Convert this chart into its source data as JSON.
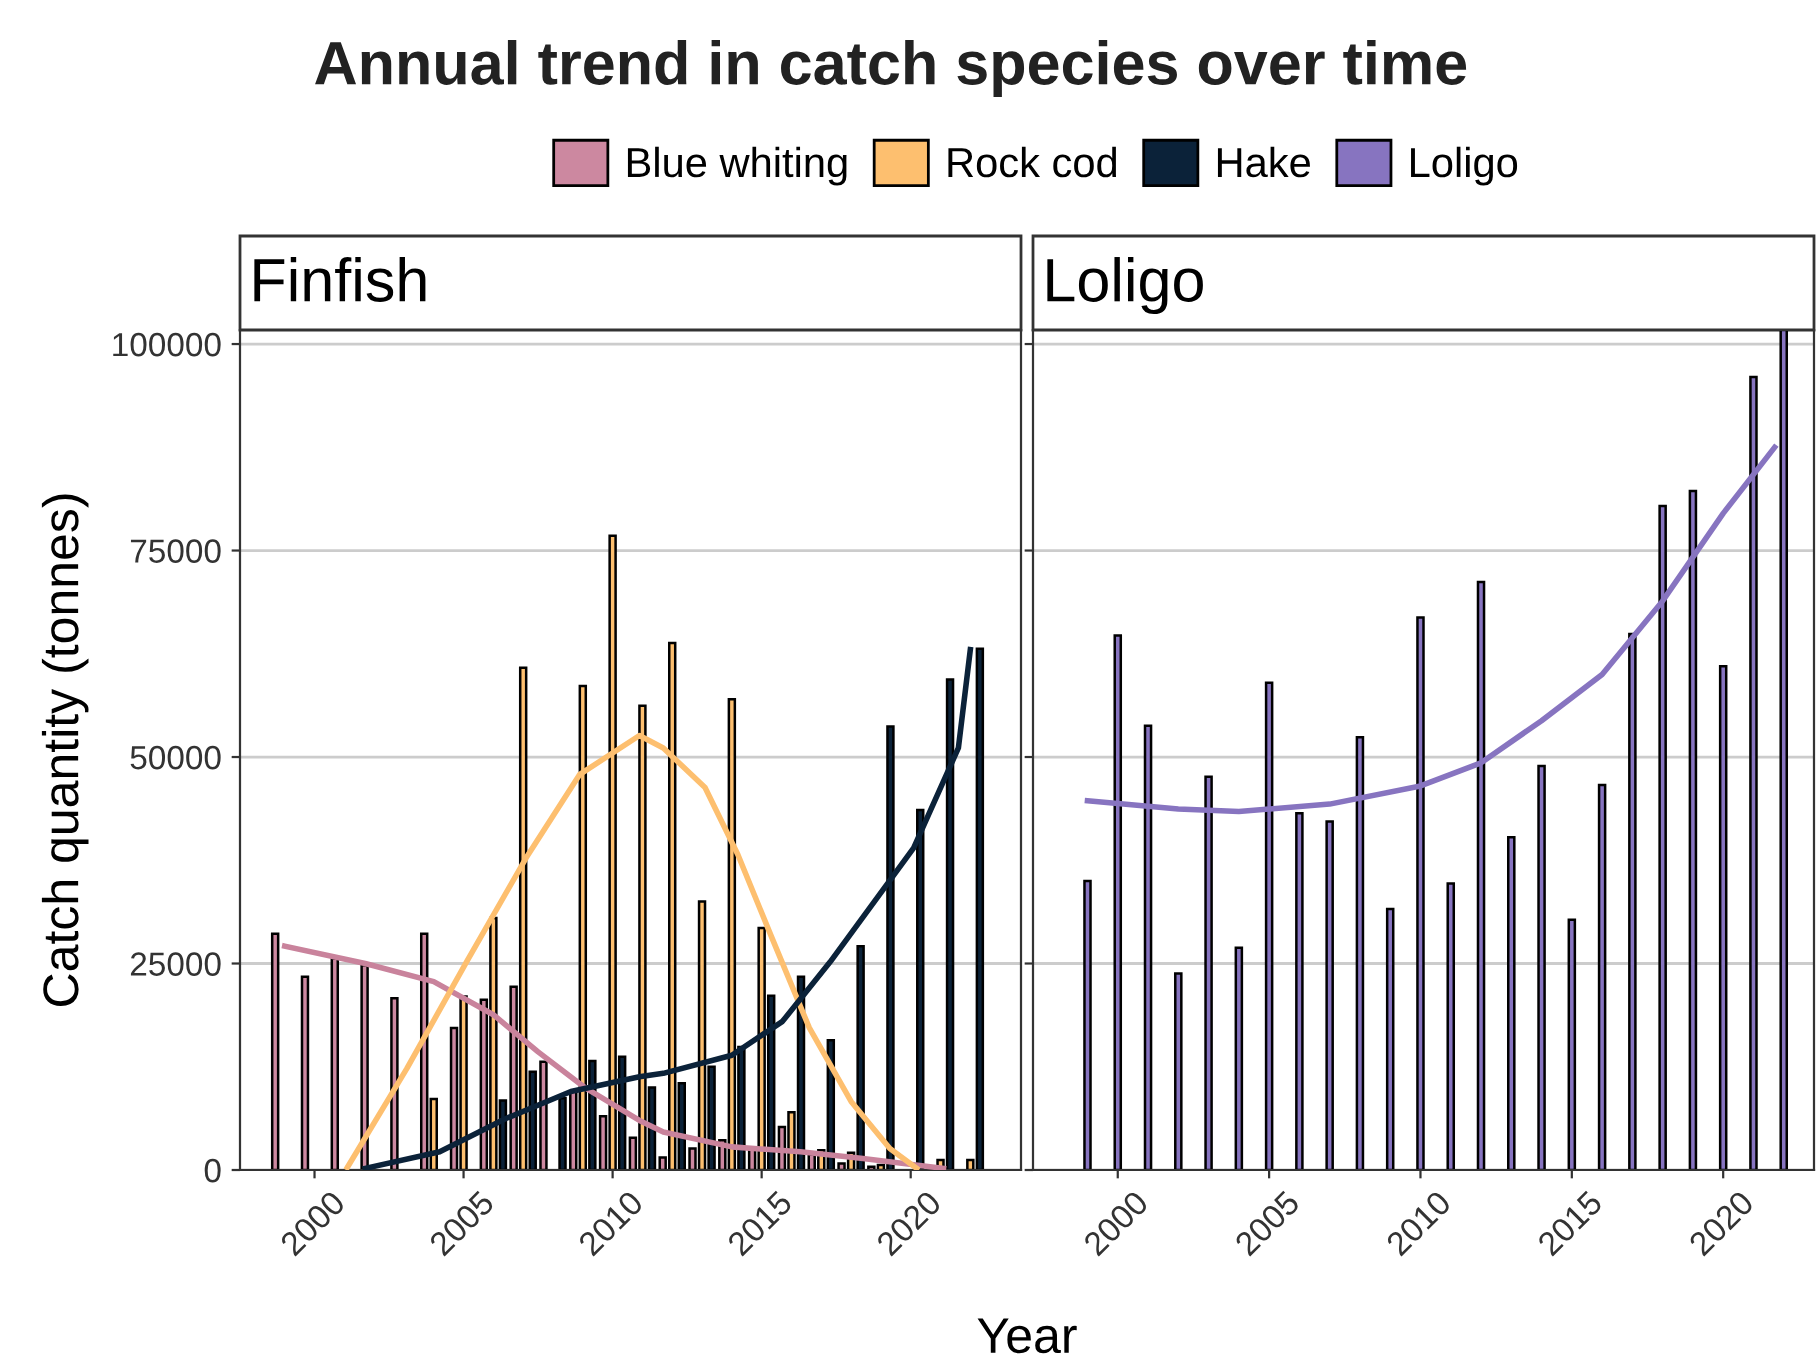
{
  "chart_data": [
    {
      "type": "bar",
      "title": "Annual trend in catch species over time",
      "subtitle": "Finfish",
      "xlabel": "Year",
      "ylabel": "Catch quantity (tonnes)",
      "legend": "top",
      "grid": "y",
      "x": [
        1999,
        2000,
        2001,
        2002,
        2003,
        2004,
        2005,
        2006,
        2007,
        2008,
        2009,
        2010,
        2011,
        2012,
        2013,
        2014,
        2015,
        2016,
        2017,
        2018,
        2019,
        2020,
        2021,
        2022
      ],
      "xlim": [
        1997.5,
        2023.7
      ],
      "xticks": [
        2000,
        2005,
        2010,
        2015,
        2020
      ],
      "ylim": [
        0,
        101700
      ],
      "yticks": [
        0,
        25000,
        50000,
        75000,
        100000
      ],
      "series": [
        {
          "name": "Blue whiting",
          "color": "#cc88a0",
          "values": [
            28600,
            23400,
            25600,
            24800,
            20800,
            28600,
            17200,
            20600,
            22200,
            13100,
            9500,
            6500,
            3900,
            1500,
            2600,
            3600,
            2600,
            5200,
            1900,
            800,
            400,
            null,
            null,
            null
          ]
        },
        {
          "name": "Rock cod",
          "color": "#fdbf6f",
          "values": [
            null,
            null,
            null,
            null,
            null,
            8600,
            21000,
            30500,
            60800,
            null,
            58600,
            76800,
            56200,
            63800,
            32500,
            57000,
            29300,
            7000,
            2400,
            2100,
            600,
            null,
            1200,
            1200
          ]
        },
        {
          "name": "Hake",
          "color": "#0b2239",
          "values": [
            null,
            null,
            null,
            null,
            null,
            null,
            null,
            8400,
            11900,
            8700,
            13200,
            13700,
            10000,
            10500,
            12500,
            14900,
            21100,
            23400,
            15700,
            27100,
            53700,
            43600,
            59400,
            63100
          ]
        },
        {
          "type": "line",
          "color": "#c9839c",
          "x": [
            1999.0,
            2001.7,
            2004.0,
            2006.0,
            2007.5,
            2009.1,
            2010.9,
            2011.7,
            2014.0,
            2016.3,
            2018.4,
            2021.1
          ],
          "values": [
            27100,
            25000,
            22800,
            18800,
            14300,
            9900,
            6000,
            4600,
            2800,
            2200,
            1400,
            200
          ]
        },
        {
          "type": "line",
          "color": "#fdbf6f",
          "x": [
            2001.1,
            2003.1,
            2005.1,
            2007.1,
            2008.9,
            2010.9,
            2011.7,
            2013.1,
            2014.2,
            2015.3,
            2016.6,
            2018.0,
            2019.3,
            2020.2
          ],
          "values": [
            300,
            12300,
            25200,
            37800,
            47900,
            52600,
            51100,
            46300,
            38200,
            28500,
            17200,
            8300,
            2600,
            200
          ]
        },
        {
          "type": "line",
          "color": "#0b2239",
          "x": [
            2001.7,
            2004.2,
            2006.4,
            2008.6,
            2010.9,
            2011.7,
            2014.0,
            2015.7,
            2017.3,
            2020.1,
            2021.6,
            2022.0
          ],
          "values": [
            200,
            2200,
            6200,
            9500,
            11300,
            11700,
            13900,
            18000,
            25200,
            39000,
            51100,
            63000
          ]
        }
      ]
    },
    {
      "type": "bar",
      "subtitle": "Loligo",
      "legend": "top",
      "grid": "y",
      "tick_labels": "x",
      "x": [
        1999,
        2000,
        2001,
        2002,
        2003,
        2004,
        2005,
        2006,
        2007,
        2008,
        2009,
        2010,
        2011,
        2012,
        2013,
        2014,
        2015,
        2016,
        2017,
        2018,
        2019,
        2020,
        2021,
        2022
      ],
      "xlim": [
        1997.2,
        2023.0
      ],
      "xticks": [
        2000,
        2005,
        2010,
        2015,
        2020
      ],
      "ylim": [
        0,
        101700
      ],
      "yticks": [
        0,
        25000,
        50000,
        75000,
        100000
      ],
      "series": [
        {
          "name": "Loligo",
          "color": "#8774c0",
          "values": [
            35000,
            64700,
            53800,
            23800,
            47600,
            26900,
            59000,
            43200,
            42200,
            52400,
            31600,
            66900,
            34700,
            71200,
            40300,
            48900,
            30300,
            46600,
            64900,
            80400,
            82200,
            61000,
            96000,
            101700
          ]
        },
        {
          "type": "line",
          "color": "#8774c0",
          "x": [
            1999,
            2002,
            2004,
            2007,
            2010,
            2012,
            2014,
            2016,
            2018,
            2020,
            2021.7
          ],
          "values": [
            44700,
            43700,
            43400,
            44300,
            46500,
            49300,
            54400,
            60000,
            68900,
            79500,
            87500
          ]
        }
      ]
    }
  ]
}
